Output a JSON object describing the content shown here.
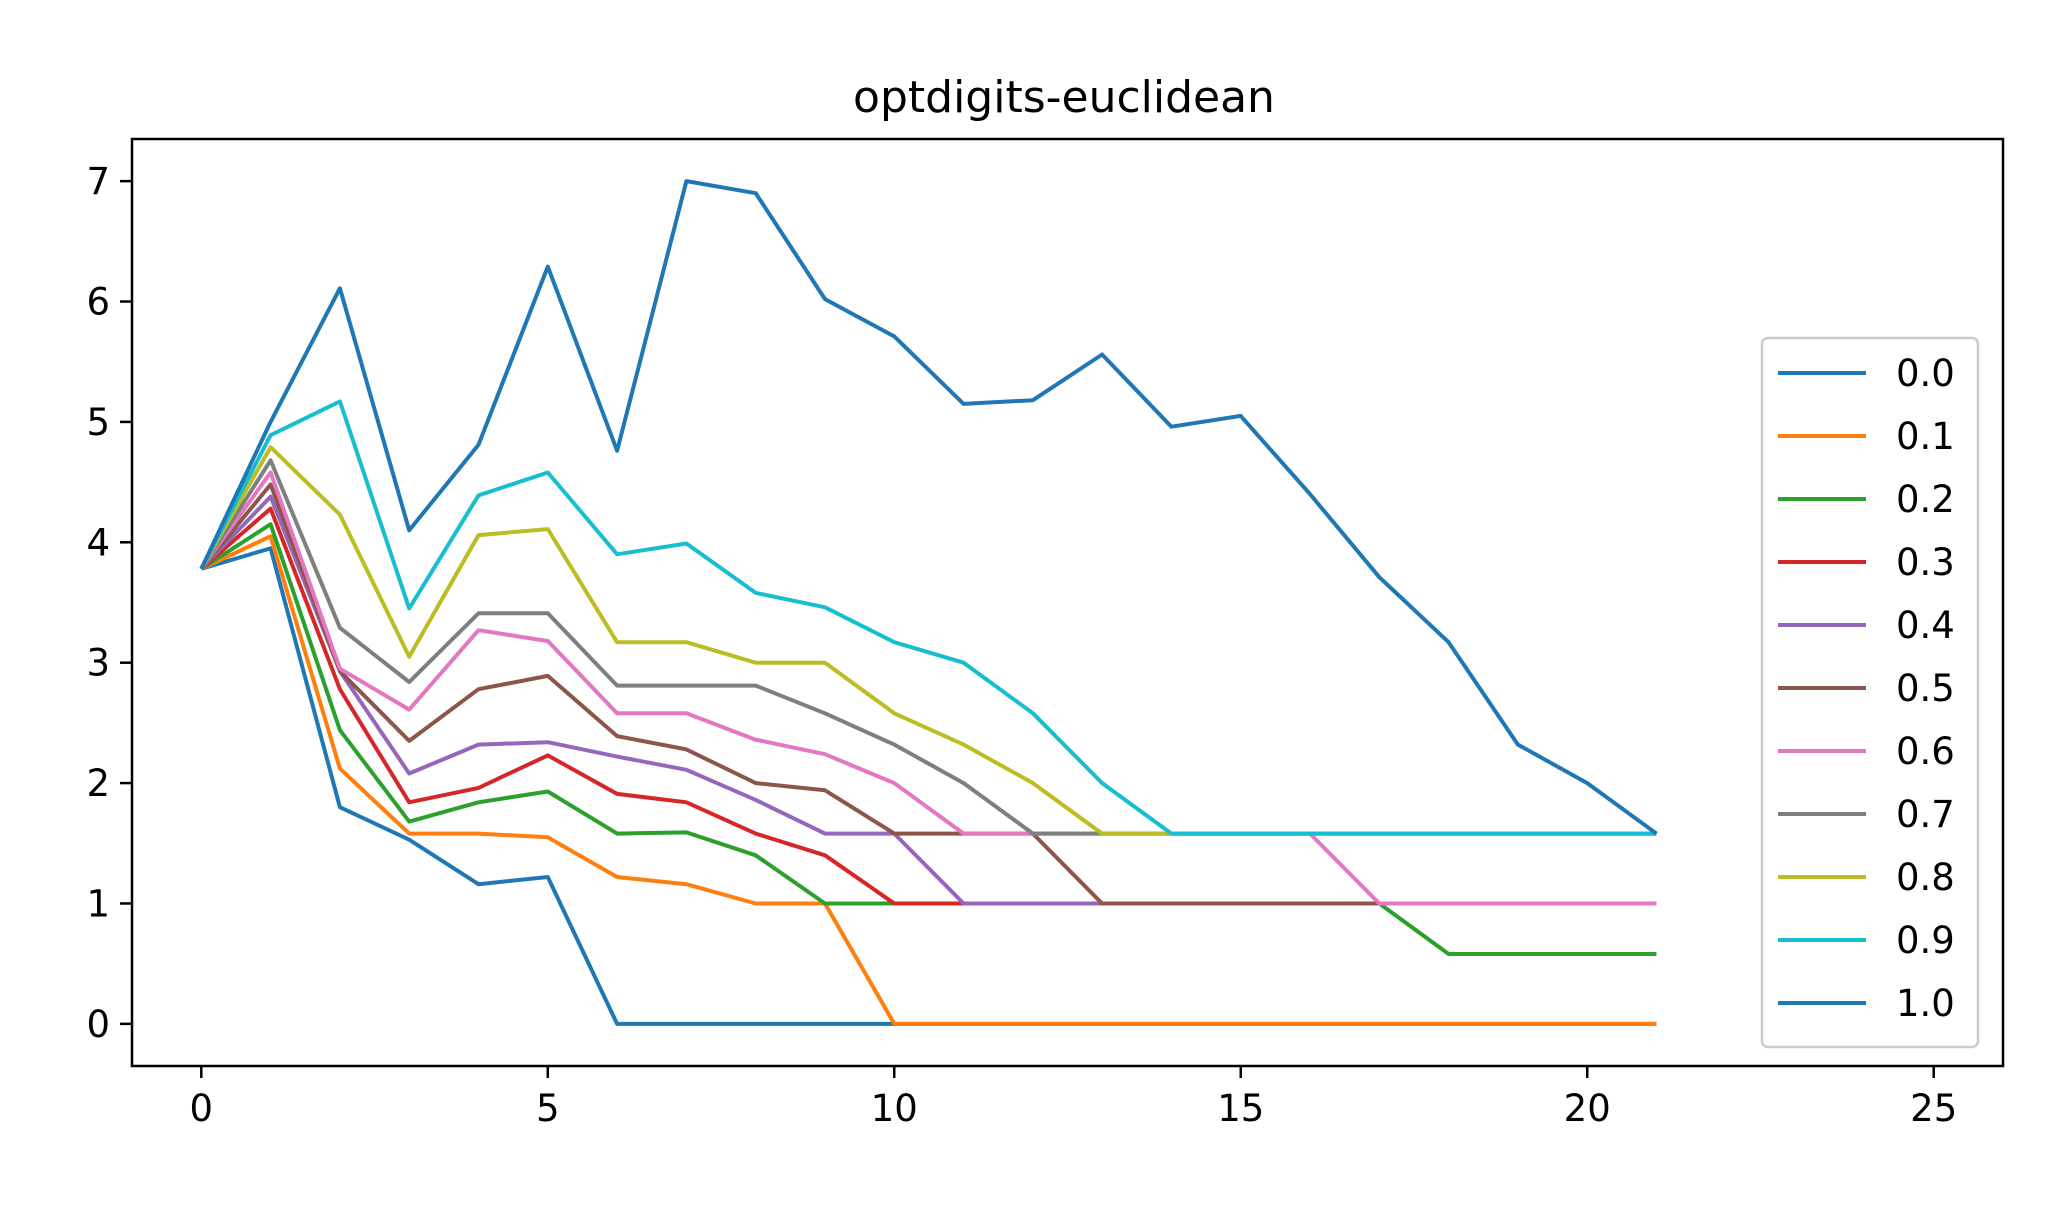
{
  "chart_data": {
    "type": "line",
    "title": "optdigits-euclidean",
    "xlabel": "",
    "ylabel": "",
    "xlim": [
      -1,
      26
    ],
    "ylim": [
      -0.35,
      7.35
    ],
    "x_ticks": [
      0,
      5,
      10,
      15,
      20,
      25
    ],
    "y_ticks": [
      0,
      1,
      2,
      3,
      4,
      5,
      6,
      7
    ],
    "grid": false,
    "legend_position": "right",
    "x": [
      0,
      1,
      2,
      3,
      4,
      5,
      6,
      7,
      8,
      9,
      10,
      11,
      12,
      13,
      14,
      15,
      16,
      17,
      18,
      19,
      20,
      21
    ],
    "series": [
      {
        "name": "0.0",
        "color": "#1f77b4",
        "values": [
          3.78,
          3.95,
          1.8,
          1.53,
          1.16,
          1.22,
          0,
          0,
          0,
          0,
          0,
          0,
          0,
          0,
          0,
          0,
          0,
          0,
          0,
          0,
          0,
          0
        ]
      },
      {
        "name": "0.1",
        "color": "#ff7f0e",
        "values": [
          3.78,
          4.05,
          2.12,
          1.58,
          1.58,
          1.55,
          1.22,
          1.16,
          1.0,
          1.0,
          0,
          0,
          0,
          0,
          0,
          0,
          0,
          0,
          0,
          0,
          0,
          0
        ]
      },
      {
        "name": "0.2",
        "color": "#2ca02c",
        "values": [
          3.78,
          4.15,
          2.44,
          1.68,
          1.84,
          1.93,
          1.58,
          1.59,
          1.4,
          1.0,
          1.0,
          1.0,
          1.0,
          1.0,
          1.0,
          1.0,
          1.0,
          1.0,
          0.58,
          0.58,
          0.58,
          0.58
        ]
      },
      {
        "name": "0.3",
        "color": "#d62728",
        "values": [
          3.78,
          4.28,
          2.78,
          1.84,
          1.96,
          2.23,
          1.91,
          1.84,
          1.58,
          1.4,
          1.0,
          1.0,
          1.0,
          1.0,
          1.0,
          1.0,
          1.0,
          1.0,
          1.0,
          1.0,
          1.0,
          1.0
        ]
      },
      {
        "name": "0.4",
        "color": "#9467bd",
        "values": [
          3.78,
          4.38,
          2.93,
          2.08,
          2.32,
          2.34,
          2.22,
          2.11,
          1.86,
          1.58,
          1.58,
          1.0,
          1.0,
          1.0,
          1.0,
          1.0,
          1.0,
          1.0,
          1.0,
          1.0,
          1.0,
          1.0
        ]
      },
      {
        "name": "0.5",
        "color": "#8c564b",
        "values": [
          3.78,
          4.48,
          2.93,
          2.35,
          2.78,
          2.89,
          2.39,
          2.28,
          2.0,
          1.94,
          1.58,
          1.58,
          1.58,
          1.0,
          1.0,
          1.0,
          1.0,
          1.0,
          1.0,
          1.0,
          1.0,
          1.0
        ]
      },
      {
        "name": "0.6",
        "color": "#e377c2",
        "values": [
          3.78,
          4.58,
          2.95,
          2.61,
          3.27,
          3.18,
          2.58,
          2.58,
          2.36,
          2.24,
          2.0,
          1.58,
          1.58,
          1.58,
          1.58,
          1.58,
          1.58,
          1.0,
          1.0,
          1.0,
          1.0,
          1.0
        ]
      },
      {
        "name": "0.7",
        "color": "#7f7f7f",
        "values": [
          3.78,
          4.68,
          3.29,
          2.84,
          3.41,
          3.41,
          2.81,
          2.81,
          2.81,
          2.58,
          2.32,
          2.0,
          1.58,
          1.58,
          1.58,
          1.58,
          1.58,
          1.58,
          1.58,
          1.58,
          1.58,
          1.58
        ]
      },
      {
        "name": "0.8",
        "color": "#bcbd22",
        "values": [
          3.78,
          4.79,
          4.23,
          3.05,
          4.06,
          4.11,
          3.17,
          3.17,
          3.0,
          3.0,
          2.58,
          2.32,
          2.0,
          1.58,
          1.58,
          1.58,
          1.58,
          1.58,
          1.58,
          1.58,
          1.58,
          1.58
        ]
      },
      {
        "name": "0.9",
        "color": "#17becf",
        "values": [
          3.78,
          4.89,
          5.17,
          3.45,
          4.39,
          4.58,
          3.9,
          3.99,
          3.58,
          3.46,
          3.17,
          3.0,
          2.58,
          2.0,
          1.58,
          1.58,
          1.58,
          1.58,
          1.58,
          1.58,
          1.58,
          1.58
        ]
      },
      {
        "name": "1.0",
        "color": "#1f77b4",
        "values": [
          3.78,
          5.0,
          6.11,
          4.1,
          4.81,
          6.29,
          4.76,
          7.0,
          6.9,
          6.02,
          5.71,
          5.15,
          5.18,
          5.56,
          4.96,
          5.05,
          4.4,
          3.71,
          3.17,
          2.32,
          2.0,
          1.58
        ]
      }
    ]
  }
}
